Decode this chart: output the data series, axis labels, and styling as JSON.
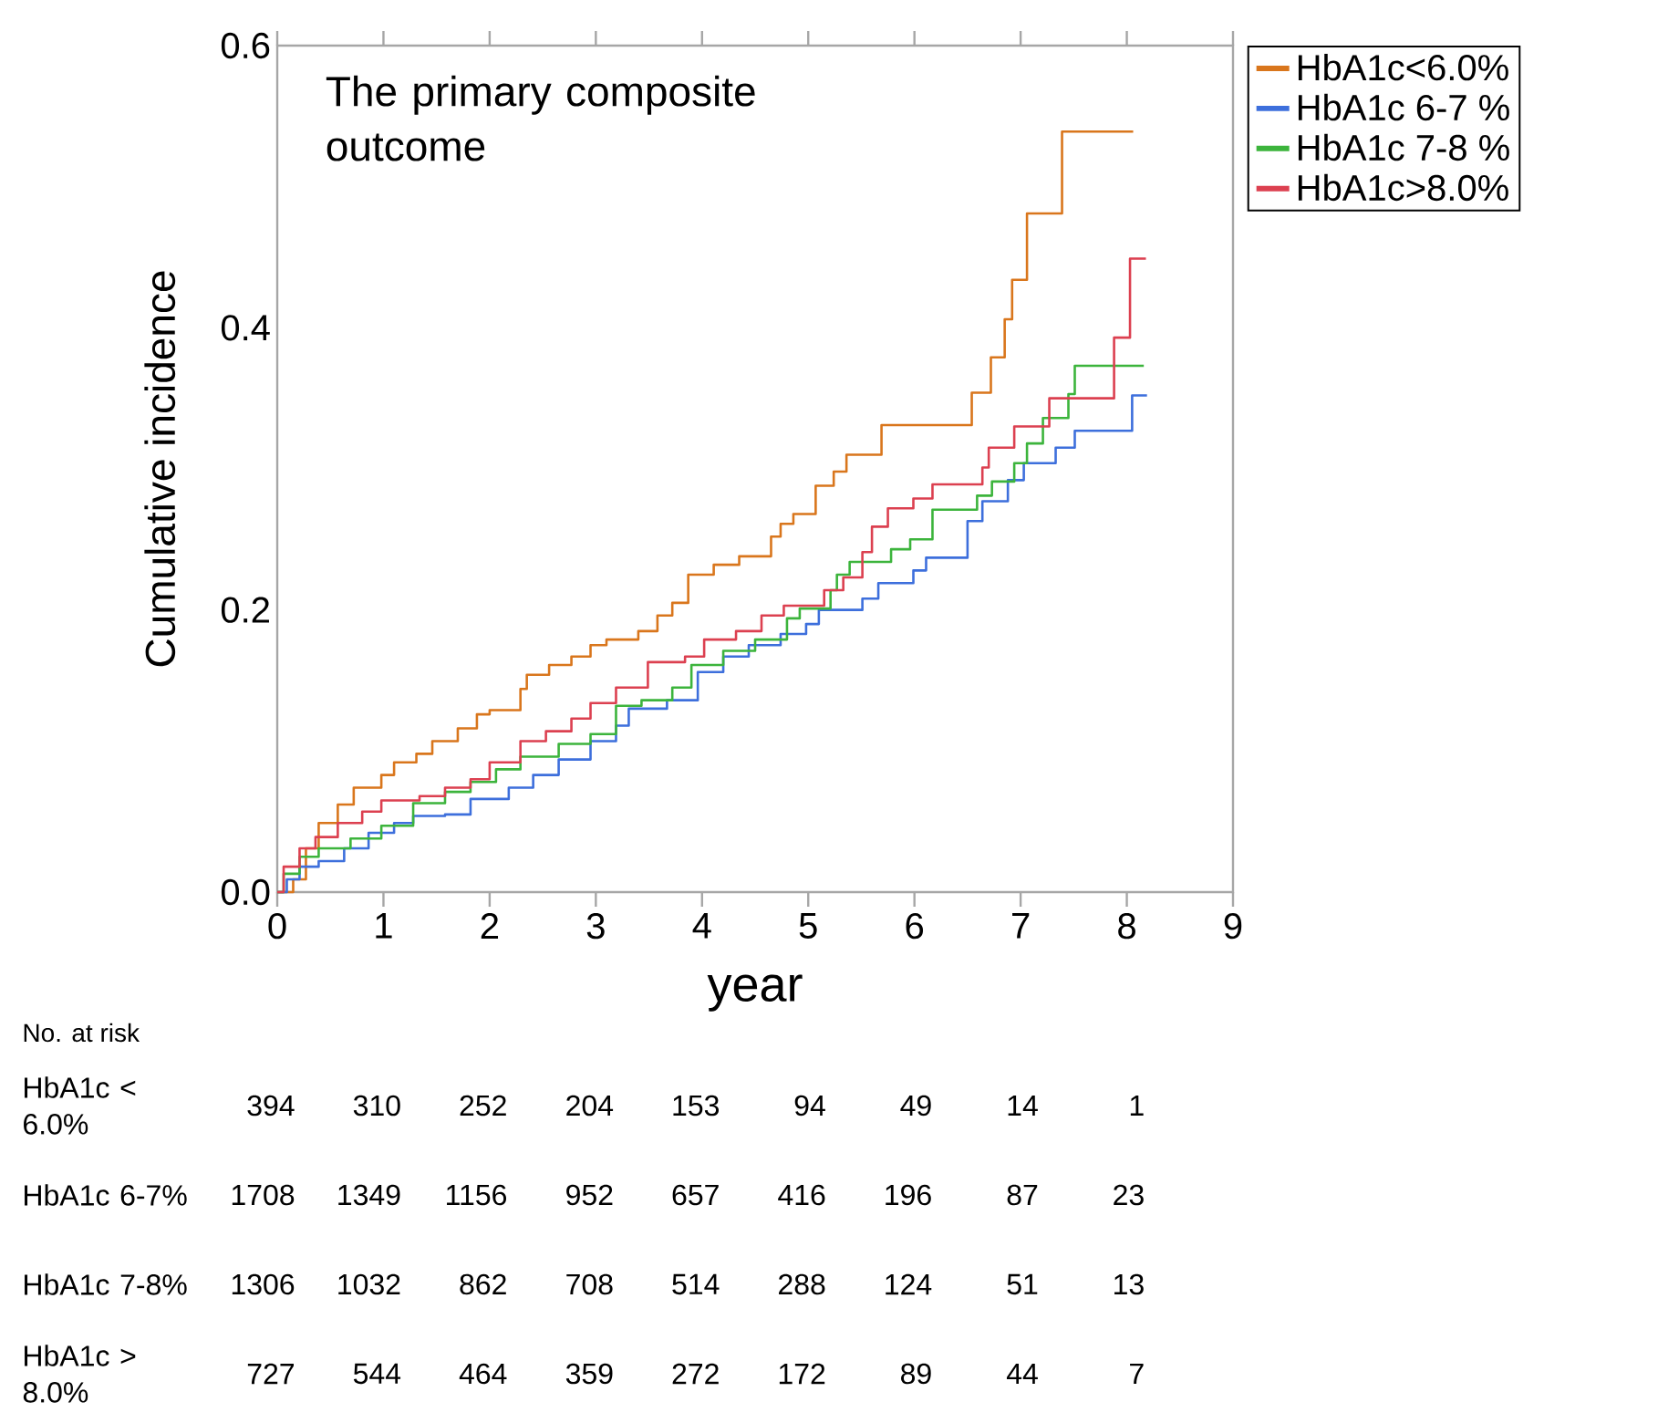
{
  "chart_data": {
    "type": "step",
    "title": "The primary composite outcome",
    "xlabel": "year",
    "ylabel": "Cumulative incidence",
    "xlim": [
      0,
      9
    ],
    "xticks": [
      0,
      1,
      2,
      3,
      4,
      5,
      6,
      7,
      8,
      9
    ],
    "ylim": [
      0,
      0.6
    ],
    "yticks": [
      {
        "value": 0,
        "label": "0.0"
      },
      0.2,
      0.4,
      0.6
    ],
    "legend": "right",
    "grid": false,
    "line_style": "solid",
    "marker": "none",
    "series": [
      {
        "name": "HbA1c<6.0%",
        "color": "#d9761c",
        "x": [
          0,
          0.15,
          0.27,
          0.39,
          0.57,
          0.72,
          0.98,
          1.1,
          1.31,
          1.46,
          1.7,
          1.88,
          2.0,
          2.29,
          2.35,
          2.56,
          2.77,
          2.95,
          3.1,
          3.4,
          3.58,
          3.72,
          3.87,
          4.11,
          4.35,
          4.65,
          4.74,
          4.86,
          5.07,
          5.24,
          5.36,
          5.69,
          5.72,
          6.54,
          6.72,
          6.85,
          6.92,
          7.06,
          7.39,
          8.06
        ],
        "values": [
          0,
          0.009,
          0.031,
          0.049,
          0.062,
          0.074,
          0.083,
          0.092,
          0.098,
          0.107,
          0.116,
          0.126,
          0.129,
          0.144,
          0.154,
          0.161,
          0.167,
          0.175,
          0.179,
          0.185,
          0.196,
          0.205,
          0.225,
          0.232,
          0.238,
          0.252,
          0.261,
          0.268,
          0.288,
          0.298,
          0.31,
          0.331,
          0.331,
          0.354,
          0.379,
          0.406,
          0.434,
          0.481,
          0.539,
          0.539
        ]
      },
      {
        "name": "HbA1c 6-7 %",
        "color": "#3d6fdc",
        "x": [
          0,
          0.09,
          0.21,
          0.39,
          0.63,
          0.86,
          1.1,
          1.28,
          1.58,
          1.82,
          2.18,
          2.41,
          2.65,
          2.95,
          3.19,
          3.31,
          3.67,
          3.96,
          4.2,
          4.44,
          4.74,
          4.98,
          5.1,
          5.51,
          5.66,
          5.99,
          6.11,
          6.5,
          6.64,
          6.88,
          7.03,
          7.33,
          7.51,
          8.05,
          8.19
        ],
        "values": [
          0,
          0.009,
          0.018,
          0.022,
          0.031,
          0.042,
          0.049,
          0.054,
          0.055,
          0.066,
          0.074,
          0.083,
          0.094,
          0.107,
          0.118,
          0.13,
          0.136,
          0.156,
          0.167,
          0.175,
          0.183,
          0.19,
          0.2,
          0.208,
          0.219,
          0.228,
          0.237,
          0.263,
          0.277,
          0.292,
          0.304,
          0.315,
          0.327,
          0.352,
          0.352
        ]
      },
      {
        "name": "HbA1c 7-8 %",
        "color": "#3cb43c",
        "x": [
          0,
          0.06,
          0.21,
          0.39,
          0.69,
          0.98,
          1.28,
          1.58,
          1.82,
          2.06,
          2.29,
          2.65,
          2.95,
          3.19,
          3.43,
          3.72,
          3.9,
          4.2,
          4.5,
          4.8,
          4.92,
          5.21,
          5.27,
          5.39,
          5.78,
          5.96,
          6.17,
          6.59,
          6.73,
          6.94,
          7.06,
          7.21,
          7.45,
          7.51,
          8.16
        ],
        "values": [
          0,
          0.013,
          0.025,
          0.031,
          0.038,
          0.047,
          0.063,
          0.071,
          0.078,
          0.087,
          0.096,
          0.105,
          0.112,
          0.132,
          0.136,
          0.145,
          0.161,
          0.171,
          0.179,
          0.194,
          0.201,
          0.214,
          0.225,
          0.234,
          0.243,
          0.25,
          0.271,
          0.281,
          0.291,
          0.304,
          0.318,
          0.336,
          0.353,
          0.373,
          0.373
        ]
      },
      {
        "name": "HbA1c>8.0%",
        "color": "#dc4050",
        "x": [
          0,
          0.06,
          0.21,
          0.36,
          0.57,
          0.8,
          0.98,
          1.34,
          1.58,
          1.82,
          2.0,
          2.29,
          2.53,
          2.77,
          2.95,
          3.19,
          3.49,
          3.84,
          4.02,
          4.32,
          4.56,
          4.77,
          5.15,
          5.33,
          5.51,
          5.6,
          5.75,
          5.99,
          6.17,
          6.64,
          6.7,
          6.94,
          7.27,
          7.88,
          8.03,
          8.18
        ],
        "values": [
          0,
          0.018,
          0.031,
          0.039,
          0.049,
          0.057,
          0.065,
          0.068,
          0.074,
          0.08,
          0.092,
          0.107,
          0.114,
          0.123,
          0.134,
          0.145,
          0.163,
          0.167,
          0.179,
          0.185,
          0.196,
          0.203,
          0.214,
          0.223,
          0.241,
          0.259,
          0.272,
          0.279,
          0.289,
          0.301,
          0.315,
          0.33,
          0.35,
          0.393,
          0.449,
          0.449
        ]
      }
    ],
    "annotations": [
      "No. at risk",
      "HbA1c < 6.0%",
      "394",
      "310",
      "252",
      "204",
      "153",
      "94",
      "49",
      "14",
      "1",
      "HbA1c 6-7%",
      "1708",
      "1349",
      "1156",
      "952",
      "657",
      "416",
      "196",
      "87",
      "23",
      "HbA1c 7-8%",
      "1306",
      "1032",
      "862",
      "708",
      "514",
      "288",
      "124",
      "51",
      "13",
      "HbA1c > 8.0%",
      "727",
      "544",
      "464",
      "359",
      "272",
      "172",
      "89",
      "44",
      "7"
    ]
  }
}
